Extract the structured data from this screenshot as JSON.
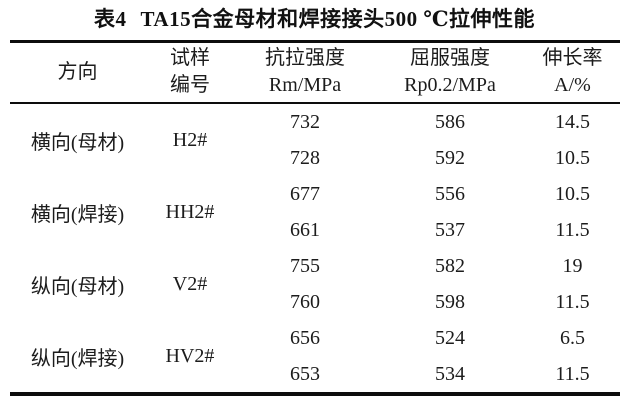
{
  "title": {
    "index": "表4",
    "text": "TA15合金母材和焊接接头500 ℃拉伸性能"
  },
  "table": {
    "headers": {
      "direction": "方向",
      "sample": [
        "试样",
        "编号"
      ],
      "tensile": [
        "抗拉强度",
        "Rm/MPa"
      ],
      "yield": [
        "屈服强度",
        "Rp0.2/MPa"
      ],
      "elongation": [
        "伸长率",
        "A/%"
      ]
    },
    "groups": [
      {
        "direction": "横向(母材)",
        "sample": "H2#",
        "rows": [
          {
            "rm": "732",
            "rp": "586",
            "a": "14.5"
          },
          {
            "rm": "728",
            "rp": "592",
            "a": "10.5"
          }
        ]
      },
      {
        "direction": "横向(焊接)",
        "sample": "HH2#",
        "rows": [
          {
            "rm": "677",
            "rp": "556",
            "a": "10.5"
          },
          {
            "rm": "661",
            "rp": "537",
            "a": "11.5"
          }
        ]
      },
      {
        "direction": "纵向(母材)",
        "sample": "V2#",
        "rows": [
          {
            "rm": "755",
            "rp": "582",
            "a": "19"
          },
          {
            "rm": "760",
            "rp": "598",
            "a": "11.5"
          }
        ]
      },
      {
        "direction": "纵向(焊接)",
        "sample": "HV2#",
        "rows": [
          {
            "rm": "656",
            "rp": "524",
            "a": "6.5"
          },
          {
            "rm": "653",
            "rp": "534",
            "a": "11.5"
          }
        ]
      }
    ]
  },
  "colors": {
    "background": "#ffffff",
    "text": "#1c1c1c",
    "rule": "#0d0d0d"
  }
}
